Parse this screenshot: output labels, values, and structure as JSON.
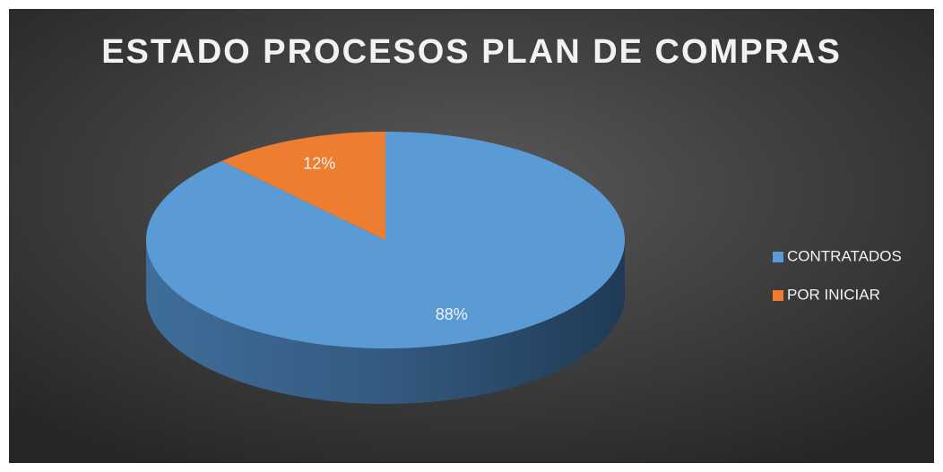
{
  "chart_data": {
    "type": "pie",
    "title": "ESTADO PROCESOS PLAN DE COMPRAS",
    "categories": [
      "CONTRATADOS",
      "POR INICIAR"
    ],
    "values": [
      88,
      12
    ],
    "value_labels": [
      "88%",
      "12%"
    ],
    "colors": [
      "#5b9bd5",
      "#ed7d31"
    ],
    "legend": "right",
    "3d": true
  }
}
